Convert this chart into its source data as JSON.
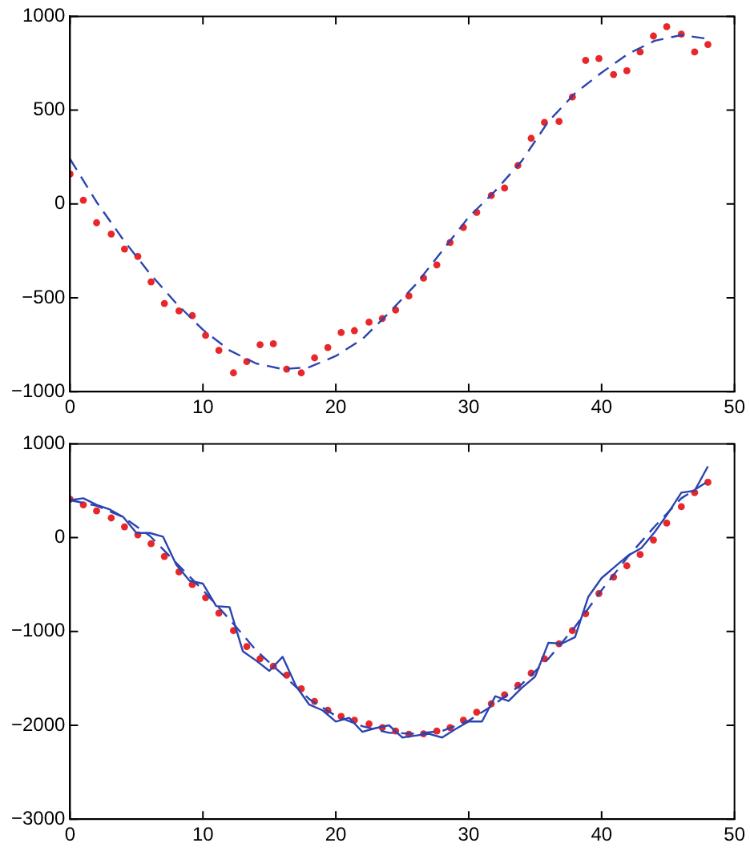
{
  "chart_data": [
    {
      "type": "scatter",
      "grid": false,
      "legend": false,
      "xlim": [
        0,
        50
      ],
      "xticks": [
        0,
        10,
        20,
        30,
        40,
        50
      ],
      "ylim": [
        -1000,
        1000
      ],
      "yticks": [
        {
          "value": -1000,
          "label": "−1000"
        },
        {
          "value": -500,
          "label": "−500"
        },
        0,
        500,
        1000
      ],
      "series": [
        {
          "type": "line",
          "color": "#2b44b0",
          "line_style": "dashed",
          "marker": "none",
          "x": [
            0,
            2,
            4,
            6,
            8,
            10,
            12,
            14,
            16,
            18,
            20,
            22,
            24,
            26,
            28,
            30,
            32,
            34,
            36,
            38,
            40,
            42,
            44,
            46,
            48
          ],
          "values": [
            240,
            10,
            -190,
            -370,
            -530,
            -670,
            -780,
            -850,
            -880,
            -870,
            -810,
            -720,
            -580,
            -430,
            -250,
            -70,
            70,
            230,
            440,
            590,
            700,
            800,
            870,
            900,
            880
          ]
        },
        {
          "type": "scatter",
          "color": "#e8272a",
          "marker": "circle",
          "x": [
            0,
            1.0,
            2.0,
            3.1,
            4.1,
            5.1,
            6.1,
            7.1,
            8.2,
            9.2,
            10.2,
            11.2,
            12.3,
            13.3,
            14.3,
            15.3,
            16.3,
            17.4,
            18.4,
            19.4,
            20.4,
            21.4,
            22.5,
            23.5,
            24.5,
            25.5,
            26.6,
            27.6,
            28.6,
            29.6,
            30.6,
            31.7,
            32.7,
            33.7,
            34.7,
            35.7,
            36.8,
            37.8,
            38.8,
            39.8,
            40.9,
            41.9,
            42.9,
            43.9,
            44.9,
            46.0,
            47.0,
            48.0
          ],
          "values": [
            160,
            20,
            -100,
            -160,
            -240,
            -280,
            -415,
            -530,
            -570,
            -595,
            -700,
            -780,
            -900,
            -840,
            -750,
            -745,
            -880,
            -900,
            -820,
            -765,
            -685,
            -675,
            -630,
            -610,
            -565,
            -490,
            -395,
            -325,
            -205,
            -125,
            -45,
            45,
            85,
            205,
            350,
            435,
            440,
            570,
            765,
            775,
            690,
            710,
            810,
            895,
            945,
            905,
            810,
            850
          ]
        }
      ]
    },
    {
      "type": "scatter",
      "grid": false,
      "legend": false,
      "xlim": [
        0,
        50
      ],
      "xticks": [
        0,
        10,
        20,
        30,
        40,
        50
      ],
      "ylim": [
        -3000,
        1000
      ],
      "yticks": [
        {
          "value": -3000,
          "label": "−3000"
        },
        {
          "value": -2000,
          "label": "−2000"
        },
        {
          "value": -1000,
          "label": "−1000"
        },
        0,
        1000
      ],
      "series": [
        {
          "type": "line",
          "color": "#2b44b0",
          "line_style": "solid",
          "marker": "none",
          "x": [
            0,
            1,
            2,
            3,
            4,
            5,
            6,
            7,
            8,
            9,
            10,
            11,
            12,
            13,
            14,
            15,
            16,
            17,
            18,
            19,
            20,
            21,
            22,
            23,
            24,
            25,
            26,
            27,
            28,
            29,
            30,
            31,
            32,
            33,
            34,
            35,
            36,
            37,
            38,
            39,
            40,
            41,
            42,
            43,
            44,
            45,
            46,
            47,
            48
          ],
          "values": [
            400,
            420,
            350,
            300,
            220,
            50,
            50,
            10,
            -290,
            -460,
            -490,
            -730,
            -740,
            -1210,
            -1310,
            -1420,
            -1270,
            -1580,
            -1780,
            -1840,
            -1960,
            -1920,
            -2070,
            -2030,
            -2000,
            -2130,
            -2110,
            -2090,
            -2130,
            -2040,
            -1960,
            -1960,
            -1690,
            -1740,
            -1600,
            -1480,
            -1120,
            -1130,
            -1060,
            -630,
            -430,
            -310,
            -190,
            -110,
            60,
            260,
            480,
            500,
            760
          ]
        },
        {
          "type": "line",
          "color": "#2b44b0",
          "line_style": "dashed",
          "marker": "none",
          "x": [
            0,
            2,
            4,
            6,
            8,
            10,
            12,
            14,
            16,
            18,
            20,
            22,
            24,
            26,
            28,
            30,
            32,
            34,
            36,
            38,
            40,
            42,
            44,
            46,
            48
          ],
          "values": [
            400,
            340,
            220,
            20,
            -270,
            -560,
            -870,
            -1200,
            -1460,
            -1720,
            -1900,
            -2010,
            -2080,
            -2090,
            -2060,
            -1950,
            -1770,
            -1560,
            -1290,
            -950,
            -560,
            -200,
            120,
            420,
            600
          ]
        },
        {
          "type": "scatter",
          "color": "#e8272a",
          "marker": "circle",
          "x": [
            0,
            1.0,
            2.0,
            3.1,
            4.1,
            5.1,
            6.1,
            7.1,
            8.2,
            9.2,
            10.2,
            11.2,
            12.3,
            13.3,
            14.3,
            15.3,
            16.3,
            17.4,
            18.4,
            19.4,
            20.4,
            21.4,
            22.5,
            23.5,
            24.5,
            25.5,
            26.6,
            27.6,
            28.6,
            29.6,
            30.6,
            31.7,
            32.7,
            33.7,
            34.7,
            35.7,
            36.8,
            37.8,
            38.8,
            39.8,
            40.9,
            41.9,
            42.9,
            43.9,
            44.9,
            46.0,
            47.0,
            48.0
          ],
          "values": [
            410,
            350,
            285,
            210,
            115,
            30,
            -65,
            -200,
            -365,
            -500,
            -640,
            -805,
            -990,
            -1160,
            -1290,
            -1370,
            -1465,
            -1610,
            -1745,
            -1840,
            -1905,
            -1945,
            -1985,
            -2025,
            -2060,
            -2095,
            -2090,
            -2060,
            -2025,
            -1945,
            -1860,
            -1770,
            -1675,
            -1575,
            -1445,
            -1290,
            -1130,
            -990,
            -810,
            -595,
            -420,
            -300,
            -180,
            -25,
            155,
            330,
            480,
            590
          ]
        }
      ]
    }
  ]
}
